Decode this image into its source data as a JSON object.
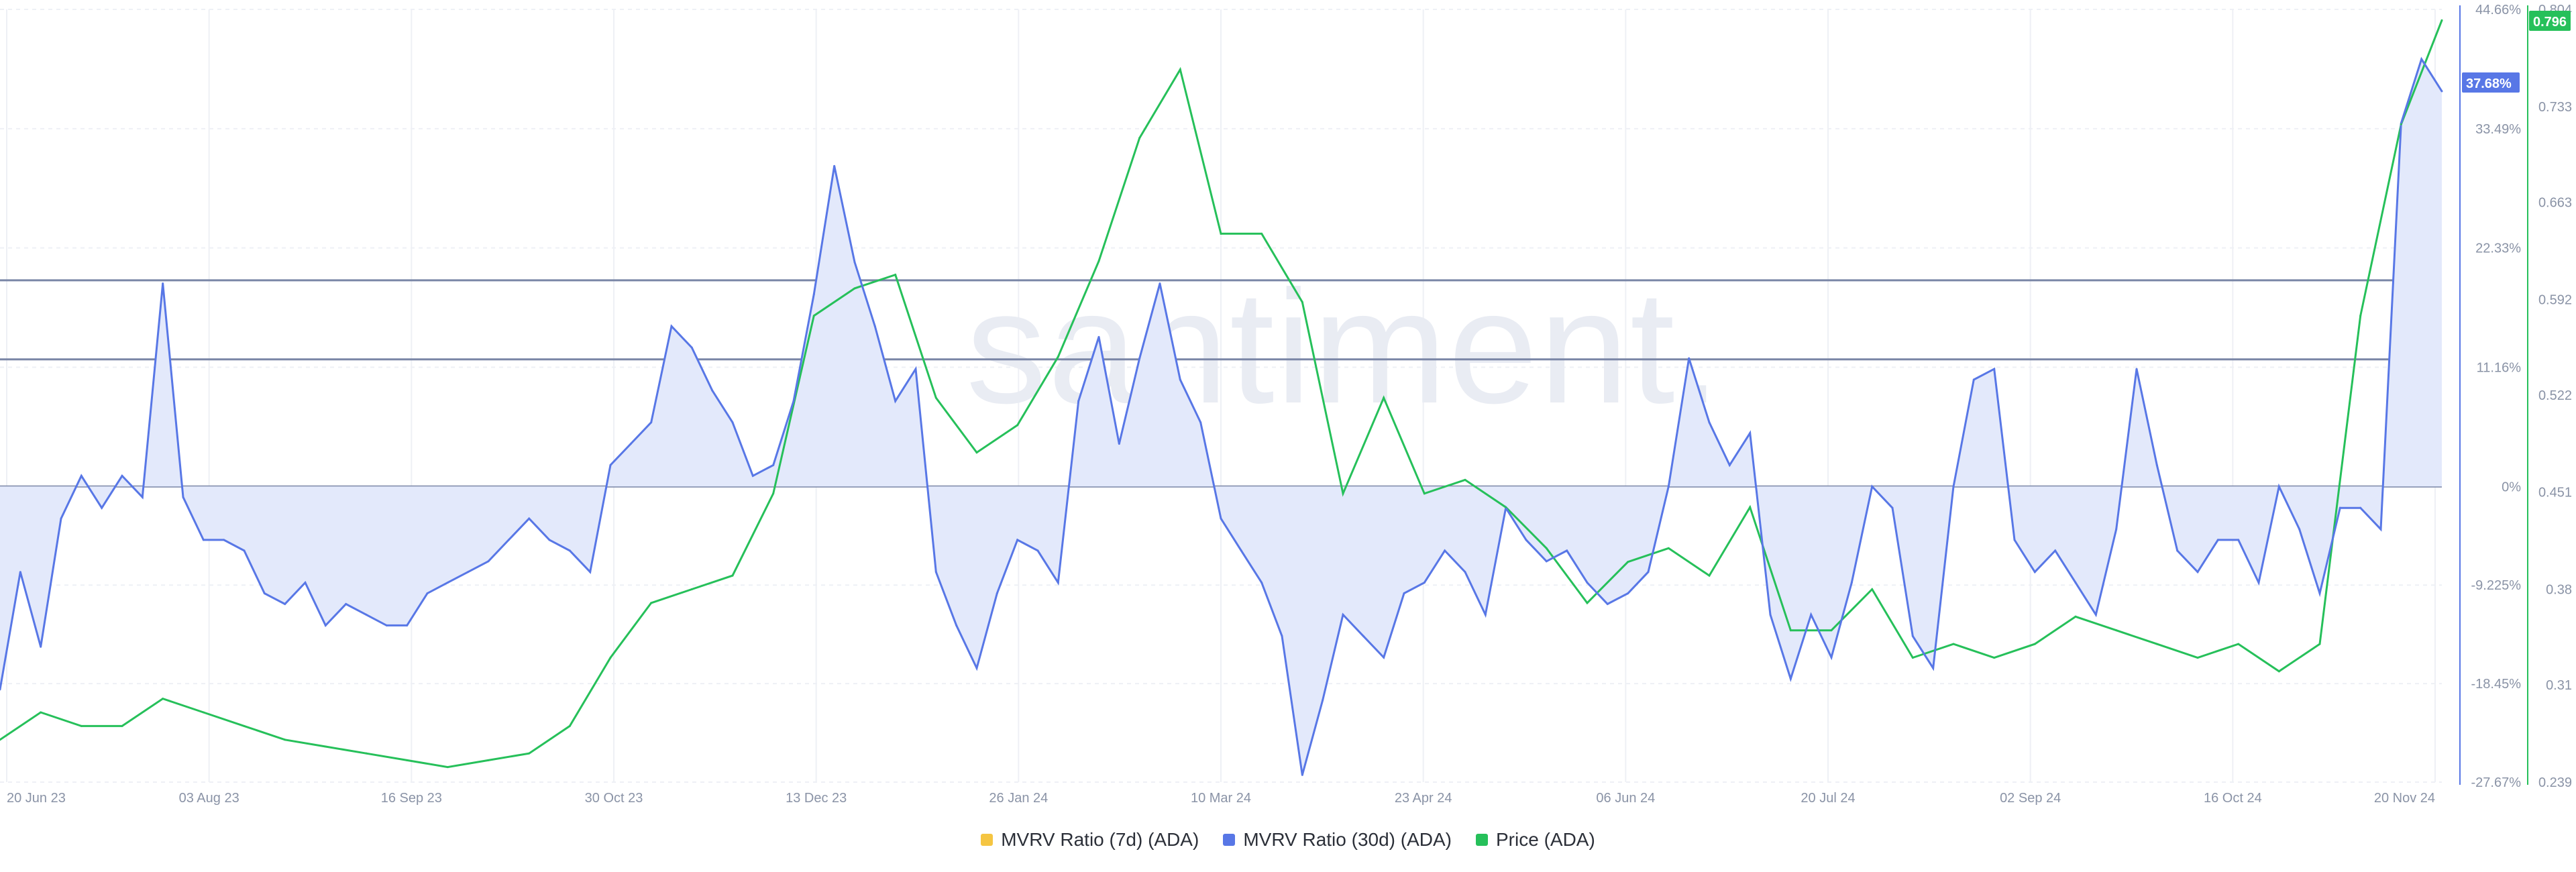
{
  "chart_data": {
    "type": "line",
    "watermark": "santiment.",
    "x_ticks": [
      "20 Jun 23",
      "03 Aug 23",
      "16 Sep 23",
      "30 Oct 23",
      "13 Dec 23",
      "26 Jan 24",
      "10 Mar 24",
      "23 Apr 24",
      "06 Jun 24",
      "20 Jul 24",
      "02 Sep 24",
      "16 Oct 24",
      "20 Nov 24"
    ],
    "mvrv_axis": {
      "ticks": [
        "44.66%",
        "33.49%",
        "22.33%",
        "11.16%",
        "0%",
        "-9.225%",
        "-18.45%",
        "-27.67%"
      ],
      "range": [
        -27.67,
        44.66
      ]
    },
    "price_axis": {
      "ticks": [
        "0.804",
        "0.733",
        "0.663",
        "0.592",
        "0.522",
        "0.451",
        "0.38",
        "0.31",
        "0.239"
      ],
      "range": [
        0.239,
        0.804
      ]
    },
    "reference_lines_mvrv": [
      19.3,
      11.9,
      0
    ],
    "current_mvrv_label": "37.68%",
    "current_price_label": "0.796",
    "colors": {
      "mvrv30d": "#5877e6",
      "mvrv30d_fill": "#e3e9fb",
      "price": "#26c05a",
      "mvrv7d": "#f5c542",
      "refline": "#7a86a6"
    },
    "series": [
      {
        "name": "MVRV Ratio (30d) (ADA)",
        "x": [
          0,
          1,
          2,
          3,
          4,
          5,
          6,
          7,
          8,
          9,
          10,
          11,
          12,
          13,
          14,
          15,
          16,
          17,
          18,
          19,
          20,
          21,
          22,
          23,
          24,
          25,
          26,
          27,
          28,
          29,
          30,
          31,
          32,
          33,
          34,
          35,
          36,
          37,
          38,
          39,
          40,
          41,
          42,
          43,
          44,
          45,
          46,
          47,
          48,
          49,
          50,
          51,
          52,
          53,
          54,
          55,
          56,
          57,
          58,
          59,
          60
        ],
        "values": [
          -19,
          -8,
          -15,
          -3,
          1,
          -2,
          1,
          -1,
          19,
          -1,
          -5,
          -5,
          -6,
          -10,
          -11,
          -9,
          -13,
          -11,
          -12,
          -13,
          -13,
          -10,
          -9,
          -8,
          -7,
          -5,
          -3,
          -5,
          -6,
          -8,
          2,
          4,
          6,
          15,
          13,
          9,
          6,
          1,
          2,
          8,
          18,
          30,
          21,
          15,
          8,
          11,
          -8,
          -13,
          -17,
          -10,
          -5,
          -6,
          -9,
          8,
          14,
          4,
          12,
          19,
          10,
          6,
          -3
        ]
      },
      {
        "name": "MVRV Ratio (30d) (ADA) (cont.)",
        "x": [
          60,
          61,
          62,
          63,
          64,
          65,
          66,
          67,
          68,
          69,
          70,
          71,
          72,
          73,
          74,
          75,
          76,
          77,
          78,
          79,
          80,
          81,
          82,
          83,
          84,
          85,
          86,
          87,
          88,
          89,
          90,
          91,
          92,
          93,
          94,
          95,
          96,
          97,
          98,
          99,
          100,
          101,
          102,
          103,
          104,
          105,
          106,
          107,
          108,
          109,
          110,
          111,
          112,
          113,
          114,
          115,
          116,
          117,
          118,
          119,
          120
        ],
        "values": [
          -3,
          -6,
          -9,
          -14,
          -27,
          -20,
          -12,
          -14,
          -16,
          -10,
          -9,
          -6,
          -8,
          -12,
          -2,
          -5,
          -7,
          -6,
          -9,
          -11,
          -10,
          -8,
          0,
          12,
          6,
          2,
          5,
          -12,
          -18,
          -12,
          -16,
          -9,
          0,
          -2,
          -14,
          -17,
          0,
          10,
          11,
          -5,
          -8,
          -6,
          -9,
          -12,
          -4,
          11,
          2,
          -6,
          -8,
          -5,
          -5,
          -9,
          0,
          -4,
          -10,
          -2,
          -2,
          -4,
          34,
          40,
          37
        ]
      },
      {
        "name": "Price (ADA)",
        "x": [
          0,
          2,
          4,
          6,
          8,
          10,
          12,
          14,
          16,
          18,
          20,
          22,
          24,
          26,
          28,
          30,
          32,
          34,
          36,
          38,
          40,
          42,
          44,
          46,
          48,
          50,
          52,
          54,
          56,
          58,
          60,
          62,
          64,
          66,
          68,
          70,
          72,
          74,
          76,
          78,
          80,
          82,
          84,
          86,
          88,
          90,
          92,
          94,
          96,
          98,
          100,
          102,
          104,
          106,
          108,
          110,
          112,
          114,
          116,
          118,
          120
        ],
        "values": [
          0.27,
          0.29,
          0.28,
          0.28,
          0.3,
          0.29,
          0.28,
          0.27,
          0.265,
          0.26,
          0.255,
          0.25,
          0.255,
          0.26,
          0.28,
          0.33,
          0.37,
          0.38,
          0.39,
          0.45,
          0.58,
          0.6,
          0.61,
          0.52,
          0.48,
          0.5,
          0.55,
          0.62,
          0.71,
          0.76,
          0.64,
          0.64,
          0.59,
          0.45,
          0.52,
          0.45,
          0.46,
          0.44,
          0.41,
          0.37,
          0.4,
          0.41,
          0.39,
          0.44,
          0.35,
          0.35,
          0.38,
          0.33,
          0.34,
          0.33,
          0.34,
          0.36,
          0.35,
          0.34,
          0.33,
          0.34,
          0.32,
          0.34,
          0.58,
          0.72,
          0.796
        ]
      }
    ],
    "legend": [
      {
        "name": "MVRV Ratio (7d) (ADA)",
        "color": "#f5c542"
      },
      {
        "name": "MVRV Ratio (30d) (ADA)",
        "color": "#5877e6"
      },
      {
        "name": "Price (ADA)",
        "color": "#26c05a"
      }
    ]
  }
}
